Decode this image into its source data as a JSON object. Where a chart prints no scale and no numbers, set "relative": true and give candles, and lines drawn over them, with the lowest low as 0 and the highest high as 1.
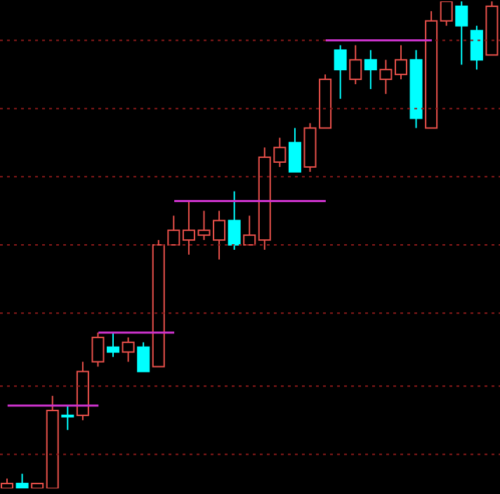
{
  "chart_data": {
    "type": "candlestick",
    "relative": true,
    "tick_labels": false,
    "ref_lines": [
      {
        "axis": "y",
        "value": 0.92,
        "color": "#8b1a1a",
        "line_style": "dotted"
      },
      {
        "axis": "y",
        "value": 0.78,
        "color": "#8b1a1a",
        "line_style": "dotted"
      },
      {
        "axis": "y",
        "value": 0.64,
        "color": "#8b1a1a",
        "line_style": "dotted"
      },
      {
        "axis": "y",
        "value": 0.5,
        "color": "#8b1a1a",
        "line_style": "dotted"
      },
      {
        "axis": "y",
        "value": 0.36,
        "color": "#8b1a1a",
        "line_style": "dotted"
      },
      {
        "axis": "y",
        "value": 0.21,
        "color": "#8b1a1a",
        "line_style": "dotted"
      },
      {
        "axis": "y",
        "value": 0.07,
        "color": "#8b1a1a",
        "line_style": "dotted"
      }
    ],
    "categories": [
      null,
      null,
      null,
      null,
      null,
      null,
      null,
      null,
      null,
      null,
      null,
      null,
      null,
      null,
      null,
      null,
      null,
      null,
      null,
      null,
      null,
      null,
      null,
      null,
      null,
      null,
      null,
      null,
      null,
      null,
      null,
      null,
      null
    ],
    "ohlc": [
      [
        0,
        0.02,
        0,
        0.01
      ],
      [
        0.01,
        0.03,
        0,
        0
      ],
      [
        0,
        0.01,
        0,
        0.01
      ],
      [
        0,
        0.19,
        0,
        0.16
      ],
      [
        0.15,
        0.17,
        0.12,
        0.15
      ],
      [
        0.15,
        0.26,
        0.14,
        0.24
      ],
      [
        0.26,
        0.32,
        0.25,
        0.31
      ],
      [
        0.29,
        0.32,
        0.27,
        0.28
      ],
      [
        0.28,
        0.31,
        0.26,
        0.3
      ],
      [
        0.29,
        0.3,
        0.24,
        0.24
      ],
      [
        0.25,
        0.51,
        0.25,
        0.5
      ],
      [
        0.5,
        0.56,
        0.5,
        0.53
      ],
      [
        0.51,
        0.59,
        0.48,
        0.53
      ],
      [
        0.52,
        0.57,
        0.51,
        0.53
      ],
      [
        0.51,
        0.57,
        0.47,
        0.55
      ],
      [
        0.55,
        0.61,
        0.49,
        0.5
      ],
      [
        0.5,
        0.56,
        0.5,
        0.52
      ],
      [
        0.51,
        0.7,
        0.49,
        0.68
      ],
      [
        0.67,
        0.72,
        0.66,
        0.7
      ],
      [
        0.71,
        0.74,
        0.65,
        0.65
      ],
      [
        0.66,
        0.75,
        0.65,
        0.74
      ],
      [
        0.74,
        0.85,
        0.74,
        0.84
      ],
      [
        0.9,
        0.91,
        0.8,
        0.86
      ],
      [
        0.84,
        0.91,
        0.83,
        0.88
      ],
      [
        0.88,
        0.9,
        0.82,
        0.86
      ],
      [
        0.84,
        0.88,
        0.81,
        0.86
      ],
      [
        0.85,
        0.91,
        0.84,
        0.88
      ],
      [
        0.88,
        0.9,
        0.74,
        0.76
      ],
      [
        0.74,
        0.98,
        0.74,
        0.96
      ],
      [
        0.96,
        1,
        0.95,
        1
      ],
      [
        0.99,
        1,
        0.87,
        0.95
      ],
      [
        0.94,
        0.95,
        0.86,
        0.88
      ],
      [
        0.89,
        1,
        0.89,
        0.99
      ]
    ],
    "colors": [
      "#e8504a",
      "#00ffff",
      "#e8504a",
      "#e8504a",
      "#00ffff",
      "#e8504a",
      "#e8504a",
      "#00ffff",
      "#e8504a",
      "#00ffff",
      "#e8504a",
      "#e8504a",
      "#e8504a",
      "#e8504a",
      "#e8504a",
      "#00ffff",
      "#e8504a",
      "#e8504a",
      "#e8504a",
      "#00ffff",
      "#e8504a",
      "#e8504a",
      "#00ffff",
      "#e8504a",
      "#00ffff",
      "#e8504a",
      "#e8504a",
      "#00ffff",
      "#e8504a",
      "#e8504a",
      "#00ffff",
      "#00ffff",
      "#e8504a"
    ],
    "series": [
      {
        "type": "line",
        "color": "#cc33cc",
        "values": [
          0.17,
          0.17,
          0.17,
          0.17,
          0.17,
          0.17,
          0.17,
          null,
          null,
          null,
          null,
          null,
          null,
          null,
          null,
          null,
          null,
          null,
          null,
          null,
          null,
          null,
          null,
          null,
          null,
          null,
          null,
          null,
          null,
          null,
          null,
          null,
          null
        ]
      },
      {
        "type": "line",
        "color": "#cc33cc",
        "values": [
          null,
          null,
          null,
          null,
          null,
          null,
          0.32,
          0.32,
          0.32,
          0.32,
          0.32,
          0.32,
          null,
          null,
          null,
          null,
          null,
          null,
          null,
          null,
          null,
          null,
          null,
          null,
          null,
          null,
          null,
          null,
          null,
          null,
          null,
          null,
          null
        ]
      },
      {
        "type": "line",
        "color": "#cc33cc",
        "values": [
          null,
          null,
          null,
          null,
          null,
          null,
          null,
          null,
          null,
          null,
          null,
          0.59,
          0.59,
          0.59,
          0.59,
          0.59,
          0.59,
          0.59,
          0.59,
          0.59,
          0.59,
          0.59,
          null,
          null,
          null,
          null,
          null,
          null,
          null,
          null,
          null,
          null,
          null
        ]
      },
      {
        "type": "line",
        "color": "#cc33cc",
        "values": [
          null,
          null,
          null,
          null,
          null,
          null,
          null,
          null,
          null,
          null,
          null,
          null,
          null,
          null,
          null,
          null,
          null,
          null,
          null,
          null,
          null,
          0.92,
          0.92,
          0.92,
          0.92,
          0.92,
          0.92,
          0.92,
          0.92,
          null,
          null,
          null,
          null
        ]
      }
    ]
  }
}
